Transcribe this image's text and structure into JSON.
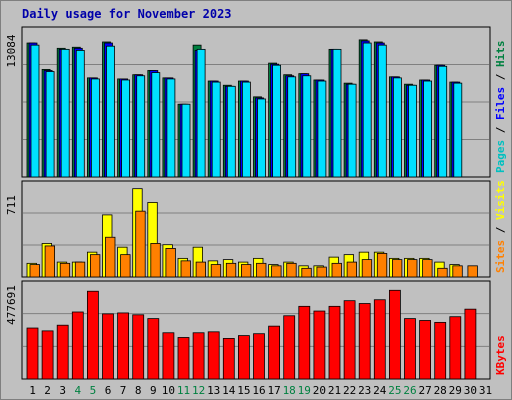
{
  "chart_data": {
    "type": "bar",
    "title": "Daily usage for November 2023",
    "categories": [
      "1",
      "2",
      "3",
      "4",
      "5",
      "6",
      "7",
      "8",
      "9",
      "10",
      "11",
      "12",
      "13",
      "14",
      "15",
      "16",
      "17",
      "18",
      "19",
      "20",
      "21",
      "22",
      "23",
      "24",
      "25",
      "26",
      "27",
      "28",
      "29",
      "30",
      "31"
    ],
    "weekend_days": [
      "4",
      "5",
      "11",
      "12",
      "18",
      "19",
      "25",
      "26"
    ],
    "panels": [
      {
        "id": "hits",
        "ymax_label": "13084",
        "ymax": 13084,
        "series": [
          {
            "name": "Hits",
            "color": "#008040",
            "values": [
              12700,
              10200,
              12200,
              12300,
              9400,
              12800,
              9300,
              9700,
              10100,
              9400,
              6900,
              12500,
              9100,
              8700,
              9100,
              7600,
              10800,
              9700,
              9800,
              9200,
              12100,
              8900,
              13000,
              12800,
              9500,
              8800,
              9200,
              10600,
              9000,
              null,
              null
            ]
          },
          {
            "name": "Files",
            "color": "#0000ff",
            "values": [
              12700,
              10100,
              12100,
              12200,
              9400,
              12700,
              9300,
              9700,
              10100,
              9400,
              6900,
              12000,
              9100,
              8600,
              9100,
              7500,
              10700,
              9600,
              9800,
              9200,
              12100,
              8800,
              12900,
              12700,
              9500,
              8700,
              9200,
              10600,
              9000,
              null,
              null
            ]
          },
          {
            "name": "Pages",
            "color": "#00e0ff",
            "values": [
              12500,
              10000,
              12100,
              12000,
              9300,
              12400,
              9200,
              9600,
              9900,
              9300,
              6900,
              12100,
              9000,
              8600,
              9000,
              7400,
              10600,
              9500,
              9600,
              9100,
              12100,
              8800,
              12700,
              12500,
              9400,
              8700,
              9100,
              10500,
              8900,
              null,
              null
            ]
          }
        ],
        "axis_labels": [
          {
            "text": "Pages",
            "color": "#00c0c0"
          },
          {
            "text": " / ",
            "color": "#000000"
          },
          {
            "text": "Files",
            "color": "#0000ff"
          },
          {
            "text": " / ",
            "color": "#000000"
          },
          {
            "text": "Hits",
            "color": "#008040"
          }
        ]
      },
      {
        "id": "visits",
        "ymax_label": "711",
        "ymax": 711,
        "series": [
          {
            "name": "Visits",
            "color": "#ffff00",
            "values": [
              110,
              270,
              120,
              120,
              200,
              500,
              240,
              711,
              600,
              260,
              150,
              240,
              130,
              140,
              120,
              150,
              100,
              120,
              90,
              90,
              160,
              180,
              200,
              200,
              150,
              150,
              150,
              120,
              100,
              null,
              null
            ]
          },
          {
            "name": "Sites",
            "color": "#ff8000",
            "values": [
              100,
              250,
              110,
              120,
              180,
              320,
              180,
              530,
              270,
              230,
              130,
              120,
              100,
              110,
              100,
              110,
              90,
              110,
              70,
              80,
              110,
              120,
              140,
              190,
              140,
              140,
              140,
              70,
              90,
              90,
              null
            ]
          }
        ],
        "axis_labels": [
          {
            "text": "Sites",
            "color": "#ff8000"
          },
          {
            "text": " / ",
            "color": "#000000"
          },
          {
            "text": "Visits",
            "color": "#ffff00"
          }
        ]
      },
      {
        "id": "kbytes",
        "ymax_label": "477691",
        "ymax": 477691,
        "series": [
          {
            "name": "KBytes",
            "color": "#ff0000",
            "values": [
              270000,
              255000,
              285000,
              355000,
              465000,
              345000,
              350000,
              340000,
              320000,
              245000,
              220000,
              245000,
              250000,
              215000,
              230000,
              240000,
              280000,
              335000,
              385000,
              360000,
              385000,
              415000,
              400000,
              420000,
              470000,
              320000,
              310000,
              300000,
              330000,
              370000,
              null
            ]
          }
        ],
        "axis_labels": [
          {
            "text": "KBytes",
            "color": "#ff0000"
          }
        ]
      }
    ]
  },
  "colors": {
    "background": "#c0c0c0",
    "grid": "#808080",
    "title": "#0000aa",
    "day_label": "#000000",
    "weekend_label": "#008040",
    "bar_outline": "#000000"
  }
}
